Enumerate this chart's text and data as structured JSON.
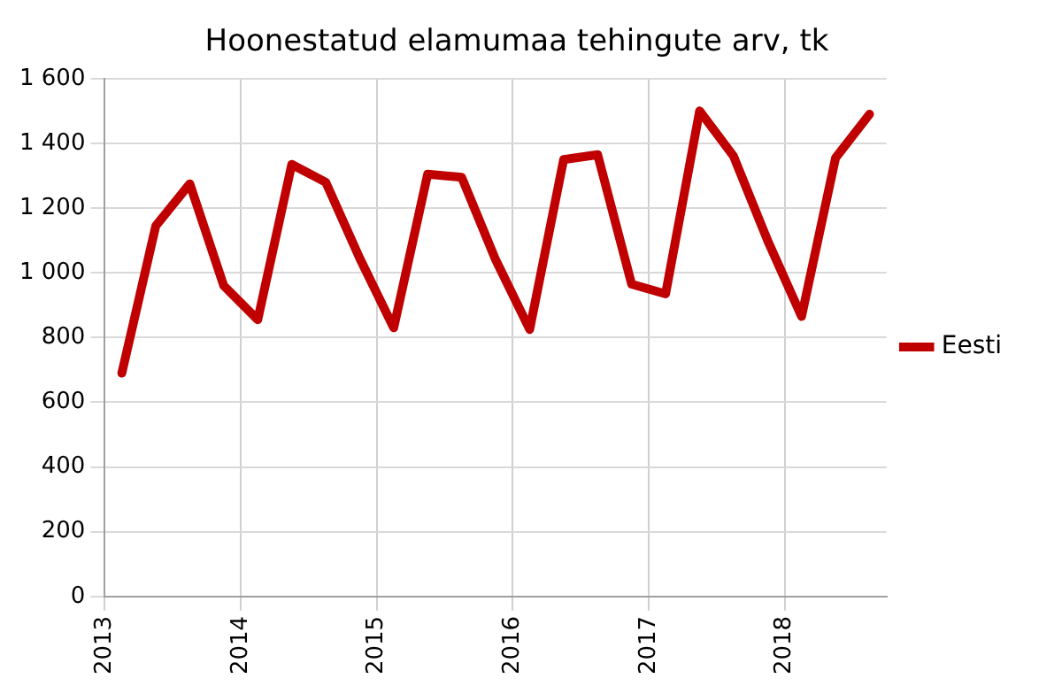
{
  "chart_data": {
    "type": "line",
    "title": "Hoonestatud elamumaa tehingute arv, tk",
    "x": [
      2013.125,
      2013.375,
      2013.625,
      2013.875,
      2014.125,
      2014.375,
      2014.625,
      2014.875,
      2015.125,
      2015.375,
      2015.625,
      2015.875,
      2016.125,
      2016.375,
      2016.625,
      2016.875,
      2017.125,
      2017.375,
      2017.625,
      2017.875,
      2018.125,
      2018.375,
      2018.625
    ],
    "series": [
      {
        "name": "Eesti",
        "color": "#c00000",
        "values": [
          690,
          1145,
          1275,
          960,
          855,
          1335,
          1280,
          1045,
          830,
          1305,
          1295,
          1040,
          825,
          1350,
          1365,
          965,
          935,
          1500,
          1360,
          1100,
          865,
          1355,
          1490
        ]
      }
    ],
    "xlim": [
      2013,
      2018.75
    ],
    "xticks": [
      2013,
      2014,
      2015,
      2016,
      2017,
      2018
    ],
    "ylim": [
      0,
      1600
    ],
    "yticks": [
      0,
      200,
      400,
      600,
      800,
      {
        "value": 1000,
        "label": "1 000"
      },
      {
        "value": 1200,
        "label": "1 200"
      },
      {
        "value": 1400,
        "label": "1 400"
      },
      {
        "value": 1600,
        "label": "1 600"
      }
    ],
    "grid": true,
    "legend": "right",
    "marker": "none",
    "line_style": "solid"
  }
}
